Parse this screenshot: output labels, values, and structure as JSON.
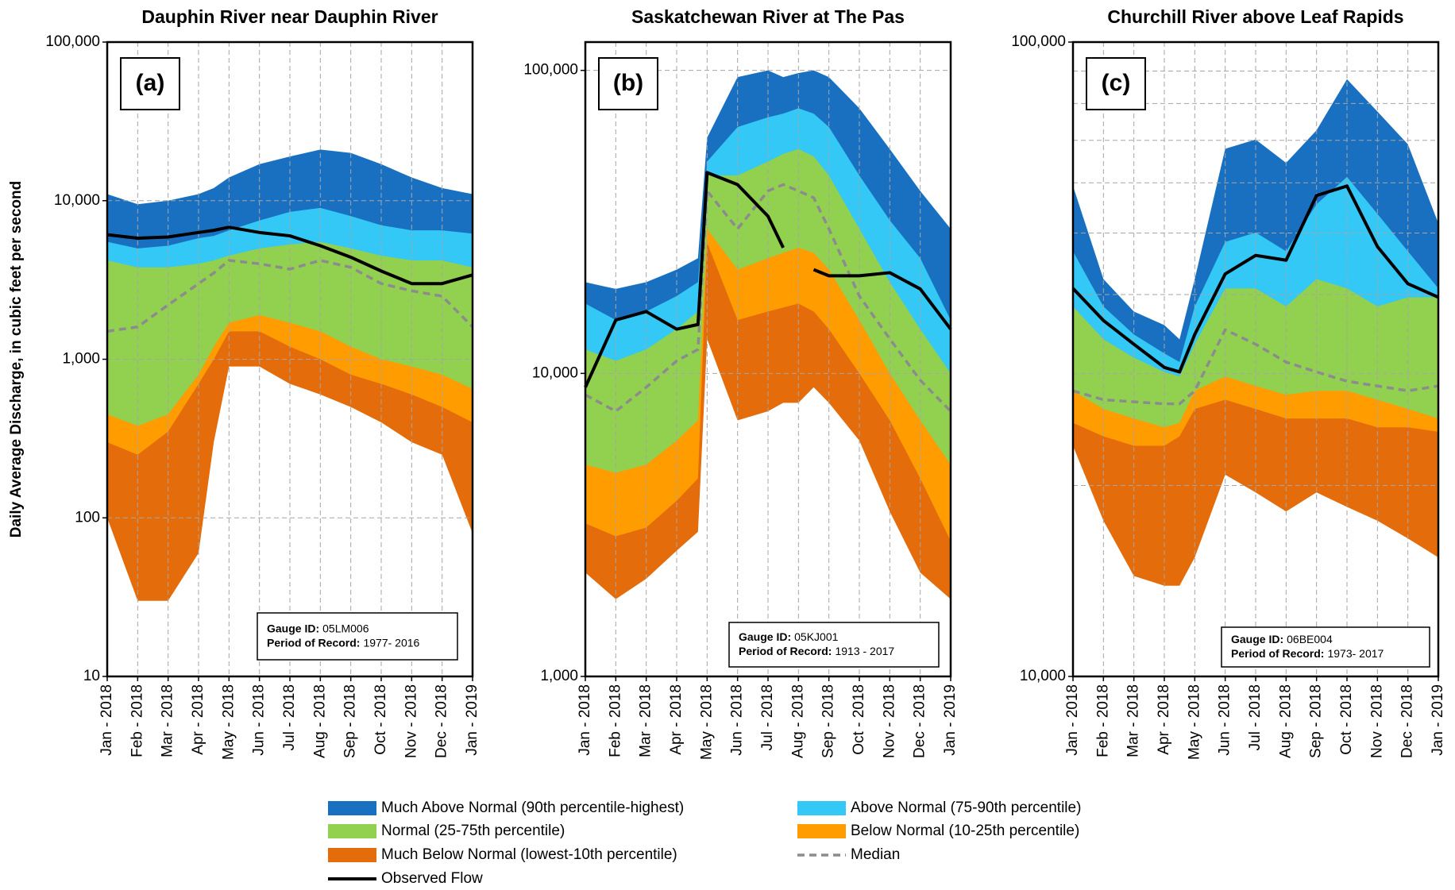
{
  "chart_data": [
    {
      "type": "percentile-area",
      "title": "Dauphin River near Dauphin River",
      "label": "(a)",
      "ylabel": "Daily Average Discharge, in cubic feet per second",
      "gauge_id_label": "Gauge ID:",
      "gauge_id": "05LM006",
      "period_label": "Period of Record:",
      "period": "1977- 2016",
      "log_scale": true,
      "grid": true,
      "x": [
        0,
        1,
        2,
        3,
        3.5,
        4,
        5,
        6,
        7,
        8,
        9,
        10,
        11,
        12
      ],
      "xlim": [
        0,
        12
      ],
      "xticks": [
        {
          "value": 0,
          "label": "Jan - 2018"
        },
        {
          "value": 1,
          "label": "Feb - 2018"
        },
        {
          "value": 2,
          "label": "Mar - 2018"
        },
        {
          "value": 3,
          "label": "Apr - 2018"
        },
        {
          "value": 4,
          "label": "May - 2018"
        },
        {
          "value": 5,
          "label": "Jun - 2018"
        },
        {
          "value": 6,
          "label": "Jul - 2018"
        },
        {
          "value": 7,
          "label": "Aug - 2018"
        },
        {
          "value": 8,
          "label": "Sep - 2018"
        },
        {
          "value": 9,
          "label": "Oct - 2018"
        },
        {
          "value": 10,
          "label": "Nov - 2018"
        },
        {
          "value": 11,
          "label": "Dec - 2018"
        },
        {
          "value": 12,
          "label": "Jan - 2019"
        }
      ],
      "ylim": [
        10,
        100000
      ],
      "yticks": [
        10,
        100,
        {
          "value": 1000,
          "label": "1,000"
        },
        {
          "value": 10000,
          "label": "10,000"
        },
        {
          "value": 100000,
          "label": "100,000"
        }
      ],
      "series": [
        {
          "name": "Much Below Normal (lowest-10th percentile)",
          "color": "#e46c0a",
          "area": true,
          "values": [
            300,
            250,
            350,
            700,
            1000,
            1500,
            1500,
            1200,
            1000,
            800,
            700,
            600,
            500,
            400
          ],
          "lower": [
            100,
            30,
            30,
            60,
            300,
            900,
            900,
            700,
            600,
            500,
            400,
            300,
            250,
            80
          ]
        },
        {
          "name": "Below Normal (10-25th percentile)",
          "color": "#ff9c00",
          "area": true,
          "values": [
            450,
            380,
            450,
            800,
            1200,
            1700,
            1900,
            1700,
            1500,
            1200,
            1000,
            900,
            800,
            650
          ]
        },
        {
          "name": "Normal (25-75th percentile)",
          "color": "#92d050",
          "area": true,
          "values": [
            4200,
            3800,
            3800,
            4000,
            4200,
            4500,
            5000,
            5300,
            5500,
            5000,
            4500,
            4200,
            4200,
            3800
          ]
        },
        {
          "name": "Above Normal (75-90th percentile)",
          "color": "#33c8f5",
          "area": true,
          "values": [
            5500,
            5000,
            5200,
            5800,
            6000,
            6500,
            7500,
            8500,
            9000,
            8000,
            7000,
            6500,
            6500,
            6200
          ]
        },
        {
          "name": "Much Above Normal (90th percentile-highest)",
          "color": "#1a70c0",
          "area": true,
          "values": [
            11000,
            9500,
            10000,
            11000,
            12000,
            14000,
            17000,
            19000,
            21000,
            20000,
            17000,
            14000,
            12000,
            11000
          ]
        },
        {
          "name": "Median",
          "color": "#8c8c8c",
          "dash": true,
          "values": [
            1500,
            1600,
            2200,
            3000,
            3500,
            4200,
            4000,
            3700,
            4200,
            3800,
            3000,
            2700,
            2500,
            1600
          ]
        },
        {
          "name": "Observed Flow",
          "color": "#000000",
          "values": [
            6100,
            5800,
            5900,
            6300,
            6500,
            6800,
            6300,
            6000,
            5200,
            4400,
            3600,
            3000,
            3000,
            3400
          ]
        }
      ]
    },
    {
      "type": "percentile-area",
      "title": "Saskatchewan River at The Pas",
      "label": "(b)",
      "gauge_id_label": "Gauge ID:",
      "gauge_id": "05KJ001",
      "period_label": "Period of Record:",
      "period": "1913 - 2017",
      "log_scale": true,
      "grid": true,
      "x": [
        0,
        1,
        2,
        3,
        3.7,
        4,
        5,
        6,
        6.5,
        7,
        7.5,
        8,
        9,
        10,
        11,
        12
      ],
      "xlim": [
        0,
        12
      ],
      "xticks": [
        {
          "value": 0,
          "label": "Jan - 2018"
        },
        {
          "value": 1,
          "label": "Feb - 2018"
        },
        {
          "value": 2,
          "label": "Mar - 2018"
        },
        {
          "value": 3,
          "label": "Apr - 2018"
        },
        {
          "value": 4,
          "label": "May - 2018"
        },
        {
          "value": 5,
          "label": "Jun - 2018"
        },
        {
          "value": 6,
          "label": "Jul - 2018"
        },
        {
          "value": 7,
          "label": "Aug - 2018"
        },
        {
          "value": 8,
          "label": "Sep - 2018"
        },
        {
          "value": 9,
          "label": "Oct - 2018"
        },
        {
          "value": 10,
          "label": "Nov - 2018"
        },
        {
          "value": 11,
          "label": "Dec - 2018"
        },
        {
          "value": 12,
          "label": "Jan - 2019"
        }
      ],
      "ylim": [
        1000,
        124000
      ],
      "yticks": [
        {
          "value": 1000,
          "label": "1,000"
        },
        {
          "value": 10000,
          "label": "10,000"
        },
        {
          "value": 100000,
          "label": "100,000"
        }
      ],
      "series": [
        {
          "color": "#e46c0a",
          "area": true,
          "values": [
            3200,
            2900,
            3100,
            3800,
            4500,
            27000,
            15000,
            16000,
            16500,
            17000,
            16000,
            14000,
            10000,
            7000,
            4500,
            2800
          ],
          "lower": [
            2200,
            1800,
            2100,
            2600,
            3000,
            13000,
            7000,
            7500,
            8000,
            8000,
            9000,
            8000,
            6000,
            3500,
            2200,
            1800
          ]
        },
        {
          "color": "#ff9c00",
          "area": true,
          "values": [
            5000,
            4700,
            5000,
            6000,
            7000,
            30000,
            22000,
            24000,
            25000,
            26000,
            25000,
            22000,
            15000,
            10000,
            7000,
            5000
          ]
        },
        {
          "color": "#92d050",
          "area": true,
          "values": [
            12000,
            11000,
            12000,
            14000,
            16000,
            45000,
            45000,
            50000,
            53000,
            55000,
            52000,
            45000,
            30000,
            20000,
            14000,
            10000
          ]
        },
        {
          "color": "#33c8f5",
          "area": true,
          "values": [
            17000,
            15000,
            16000,
            18000,
            20000,
            50000,
            65000,
            70000,
            72000,
            75000,
            72000,
            65000,
            45000,
            32000,
            24000,
            15000
          ]
        },
        {
          "color": "#1a70c0",
          "area": true,
          "values": [
            20000,
            19000,
            20000,
            22000,
            24000,
            60000,
            95000,
            100000,
            95000,
            98000,
            100000,
            95000,
            75000,
            55000,
            40000,
            30000
          ]
        },
        {
          "color": "#8c8c8c",
          "dash": true,
          "values": [
            8500,
            7500,
            9000,
            11000,
            12000,
            40000,
            30000,
            40000,
            42000,
            40000,
            38000,
            30000,
            18000,
            13000,
            9500,
            7500
          ]
        },
        {
          "color": "#000000",
          "values": [
            9000,
            15000,
            16000,
            14000,
            14500,
            46000,
            42000,
            33000,
            26000,
            null,
            22000,
            21000,
            21000,
            21500,
            19000,
            14000
          ]
        }
      ]
    },
    {
      "type": "percentile-area",
      "title": "Churchill River above Leaf Rapids",
      "label": "(c)",
      "gauge_id_label": "Gauge ID:",
      "gauge_id": "06BE004",
      "period_label": "Period of Record:",
      "period": "1973- 2017",
      "log_scale": true,
      "grid": true,
      "x": [
        0,
        1,
        2,
        3,
        3.5,
        4,
        5,
        6,
        7,
        8,
        9,
        10,
        11,
        12
      ],
      "xlim": [
        0,
        12
      ],
      "xticks": [
        {
          "value": 0,
          "label": "Jan - 2018"
        },
        {
          "value": 1,
          "label": "Feb - 2018"
        },
        {
          "value": 2,
          "label": "Mar - 2018"
        },
        {
          "value": 3,
          "label": "Apr - 2018"
        },
        {
          "value": 4,
          "label": "May - 2018"
        },
        {
          "value": 5,
          "label": "Jun - 2018"
        },
        {
          "value": 6,
          "label": "Jul - 2018"
        },
        {
          "value": 7,
          "label": "Aug - 2018"
        },
        {
          "value": 8,
          "label": "Sep - 2018"
        },
        {
          "value": 9,
          "label": "Oct - 2018"
        },
        {
          "value": 10,
          "label": "Nov - 2018"
        },
        {
          "value": 11,
          "label": "Dec - 2018"
        },
        {
          "value": 12,
          "label": "Jan - 2019"
        }
      ],
      "ylim": [
        10000,
        100000
      ],
      "yticks": [
        {
          "value": 10000,
          "label": "10,000"
        },
        {
          "value": 100000,
          "label": "100,000"
        }
      ],
      "yminor": [
        20000,
        30000,
        40000,
        50000,
        60000,
        70000,
        80000,
        90000
      ],
      "series": [
        {
          "color": "#e46c0a",
          "area": true,
          "values": [
            25100,
            23900,
            23100,
            23100,
            23900,
            26400,
            27300,
            26400,
            25500,
            25500,
            25500,
            24700,
            24700,
            24300
          ],
          "lower": [
            23100,
            17600,
            14400,
            13900,
            13900,
            15400,
            20800,
            19500,
            18200,
            19500,
            18500,
            17600,
            16500,
            15400
          ]
        },
        {
          "color": "#ff9c00",
          "area": true,
          "values": [
            28200,
            26400,
            25500,
            24700,
            25100,
            28200,
            29700,
            28700,
            27800,
            28200,
            28200,
            27300,
            26400,
            25500
          ]
        },
        {
          "color": "#92d050",
          "area": true,
          "values": [
            38300,
            34000,
            31800,
            30200,
            29700,
            33400,
            40900,
            40900,
            38300,
            42300,
            40900,
            38300,
            39600,
            39600
          ]
        },
        {
          "color": "#33c8f5",
          "area": true,
          "values": [
            46800,
            38300,
            34600,
            32300,
            31300,
            38300,
            48400,
            50100,
            46800,
            55500,
            61300,
            53600,
            46800,
            40900
          ]
        },
        {
          "color": "#1a70c0",
          "area": true,
          "values": [
            59300,
            42300,
            37600,
            35800,
            34000,
            42300,
            67900,
            70200,
            64500,
            72600,
            87400,
            77700,
            69000,
            51800
          ]
        },
        {
          "color": "#8c8c8c",
          "dash": true,
          "values": [
            28200,
            27300,
            27100,
            26900,
            26900,
            28200,
            35200,
            33400,
            31300,
            30200,
            29200,
            28700,
            28200,
            28700
          ]
        },
        {
          "color": "#000000",
          "values": [
            40900,
            36400,
            33400,
            30700,
            30200,
            34600,
            43100,
            46100,
            45300,
            57300,
            59300,
            47600,
            41600,
            39600
          ]
        }
      ]
    }
  ]
}
